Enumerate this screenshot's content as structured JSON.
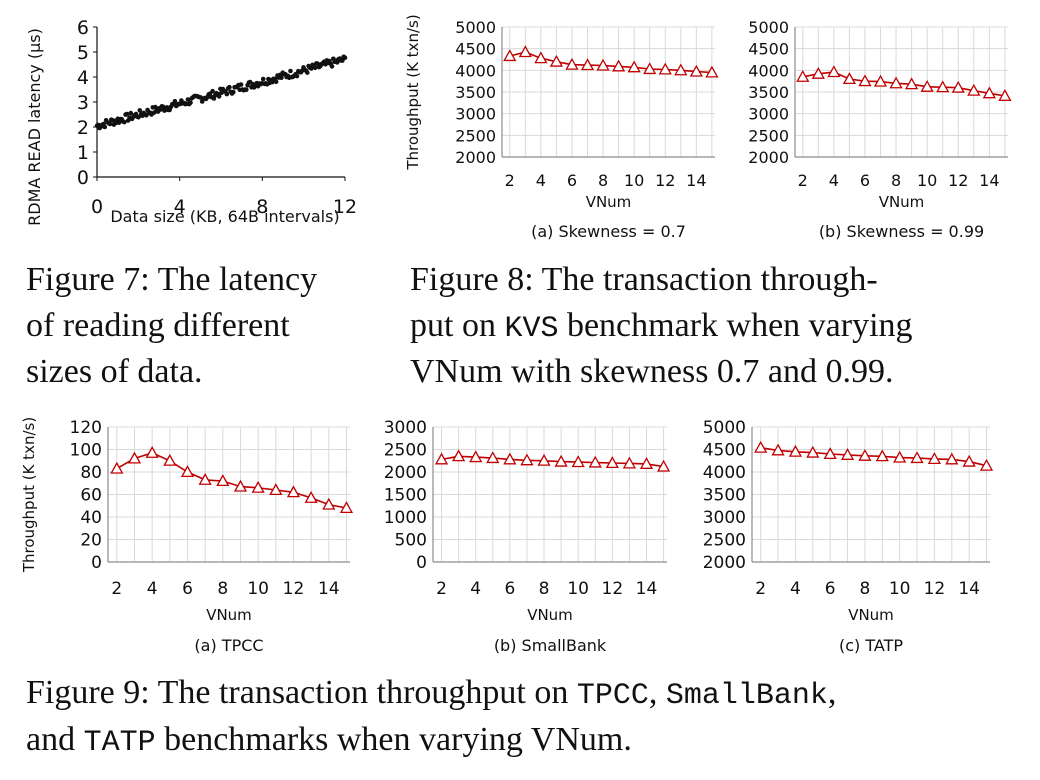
{
  "colors": {
    "series": "#c00000",
    "grid": "#d9d9d9",
    "axis": "#8c8c8c",
    "dots": "#111111"
  },
  "chart_data": [
    {
      "id": "fig7",
      "type": "scatter",
      "title": "",
      "xlabel": "Data size (KB, 64B intervals)",
      "ylabel": "RDMA READ latency (µs)",
      "xlim": [
        0,
        12
      ],
      "ylim": [
        0,
        6
      ],
      "xticks": [
        "0",
        "4",
        "8",
        "12"
      ],
      "yticks": [
        "0",
        "1",
        "2",
        "3",
        "4",
        "5",
        "6"
      ],
      "grid": false,
      "point_count": 192,
      "trend": {
        "start": {
          "x": 0,
          "y": 2.05
        },
        "end": {
          "x": 12,
          "y": 4.7
        }
      }
    },
    {
      "id": "fig8a",
      "type": "line",
      "subcaption": "(a) Skewness = 0.7",
      "xlabel": "VNum",
      "ylabel": "Throughput (K txn/s)",
      "xlim": [
        1.5,
        15.2
      ],
      "ylim": [
        2000,
        5000
      ],
      "xticks": [
        "2",
        "4",
        "6",
        "8",
        "10",
        "12",
        "14"
      ],
      "yticks": [
        "2000",
        "2500",
        "3000",
        "3500",
        "4000",
        "4500",
        "5000"
      ],
      "grid": true,
      "x": [
        2,
        3,
        4,
        5,
        6,
        7,
        8,
        9,
        10,
        11,
        12,
        13,
        14,
        15
      ],
      "values": [
        4330,
        4420,
        4280,
        4200,
        4130,
        4120,
        4110,
        4090,
        4070,
        4030,
        4020,
        4000,
        3970,
        3950
      ]
    },
    {
      "id": "fig8b",
      "type": "line",
      "subcaption": "(b) Skewness = 0.99",
      "xlabel": "VNum",
      "ylabel": "",
      "xlim": [
        1.5,
        15.2
      ],
      "ylim": [
        2000,
        5000
      ],
      "xticks": [
        "2",
        "4",
        "6",
        "8",
        "10",
        "12",
        "14"
      ],
      "yticks": [
        "2000",
        "2500",
        "3000",
        "3500",
        "4000",
        "4500",
        "5000"
      ],
      "grid": true,
      "x": [
        2,
        3,
        4,
        5,
        6,
        7,
        8,
        9,
        10,
        11,
        12,
        13,
        14,
        15
      ],
      "values": [
        3850,
        3920,
        3960,
        3800,
        3750,
        3740,
        3700,
        3680,
        3620,
        3610,
        3600,
        3530,
        3470,
        3410
      ]
    },
    {
      "id": "fig9a",
      "type": "line",
      "subcaption": "(a) TPCC",
      "xlabel": "VNum",
      "ylabel": "Throughput (K txn/s)",
      "xlim": [
        1.5,
        15.2
      ],
      "ylim": [
        0,
        120
      ],
      "xticks": [
        "2",
        "4",
        "6",
        "8",
        "10",
        "12",
        "14"
      ],
      "yticks": [
        "0",
        "20",
        "40",
        "60",
        "80",
        "100",
        "120"
      ],
      "grid": true,
      "x": [
        2,
        3,
        4,
        5,
        6,
        7,
        8,
        9,
        10,
        11,
        12,
        13,
        14,
        15
      ],
      "values": [
        83,
        92,
        97,
        90,
        80,
        73,
        72,
        67,
        66,
        64,
        62,
        57,
        51,
        48
      ]
    },
    {
      "id": "fig9b",
      "type": "line",
      "subcaption": "(b) SmallBank",
      "xlabel": "VNum",
      "ylabel": "",
      "xlim": [
        1.5,
        15.2
      ],
      "ylim": [
        0,
        3000
      ],
      "xticks": [
        "2",
        "4",
        "6",
        "8",
        "10",
        "12",
        "14"
      ],
      "yticks": [
        "0",
        "500",
        "1000",
        "1500",
        "2000",
        "2500",
        "3000"
      ],
      "grid": true,
      "x": [
        2,
        3,
        4,
        5,
        6,
        7,
        8,
        9,
        10,
        11,
        12,
        13,
        14,
        15
      ],
      "values": [
        2280,
        2350,
        2330,
        2310,
        2280,
        2260,
        2250,
        2230,
        2220,
        2210,
        2200,
        2190,
        2180,
        2120
      ]
    },
    {
      "id": "fig9c",
      "type": "line",
      "subcaption": "(c) TATP",
      "xlabel": "VNum",
      "ylabel": "",
      "xlim": [
        1.5,
        15.2
      ],
      "ylim": [
        2000,
        5000
      ],
      "xticks": [
        "2",
        "4",
        "6",
        "8",
        "10",
        "12",
        "14"
      ],
      "yticks": [
        "2000",
        "2500",
        "3000",
        "3500",
        "4000",
        "4500",
        "5000"
      ],
      "grid": true,
      "x": [
        2,
        3,
        4,
        5,
        6,
        7,
        8,
        9,
        10,
        11,
        12,
        13,
        14,
        15
      ],
      "values": [
        4540,
        4480,
        4450,
        4430,
        4400,
        4380,
        4360,
        4350,
        4320,
        4310,
        4290,
        4280,
        4230,
        4140
      ]
    }
  ],
  "captions": {
    "fig7": [
      "Figure 7: The latency",
      "of reading different",
      "sizes of data."
    ],
    "fig8": {
      "line1": "Figure 8: The transaction through-",
      "line2_pre": "put on ",
      "line2_code": "KVS",
      "line2_post": " benchmark when varying",
      "line3": "VNum with skewness 0.7 and 0.99."
    },
    "fig9": {
      "line1_pre": "Figure 9: The transaction throughput on ",
      "code1": "TPCC",
      "sep1": ", ",
      "code2": "SmallBank",
      "sep2": ",",
      "line2_pre": "and ",
      "code3": "TATP",
      "line2_post": " benchmarks when varying VNum."
    }
  }
}
